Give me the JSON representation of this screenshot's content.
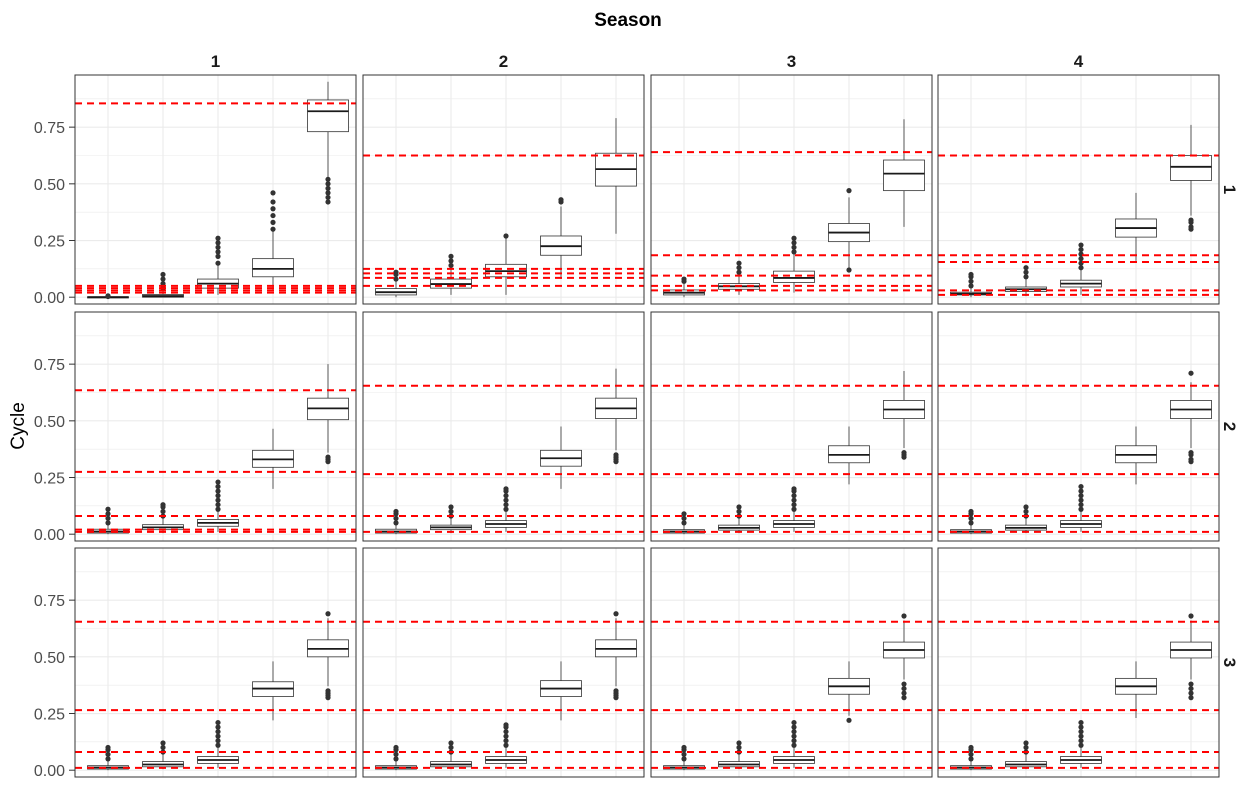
{
  "chart_data": {
    "type": "boxplot",
    "title": "Season",
    "ylabel": "Cycle",
    "xlabel": "",
    "ylim": [
      -0.03,
      0.98
    ],
    "yticks": [
      0.0,
      0.25,
      0.5,
      0.75
    ],
    "ytick_labels": [
      "0.00",
      "0.25",
      "0.50",
      "0.75"
    ],
    "col_strips": [
      "1",
      "2",
      "3",
      "4"
    ],
    "row_strips": [
      "1",
      "2",
      "3"
    ],
    "grid": true,
    "colors": {
      "reference_line": "#ff0000",
      "box_fill": "#ffffff",
      "box_line": "#333333",
      "outlier": "#333333",
      "grid": "#ebebeb",
      "panel_border": "#333333"
    },
    "panels": [
      {
        "row": "1",
        "col": "1",
        "ref_lines": [
          0.855,
          0.05,
          0.04,
          0.03,
          0.02
        ],
        "boxes": [
          {
            "q1": 0.0,
            "median": 0.0,
            "q3": 0.002,
            "lo": 0.0,
            "hi": 0.005,
            "out": [
              0.003,
              0.006
            ]
          },
          {
            "q1": 0.0,
            "median": 0.005,
            "q3": 0.012,
            "lo": 0.0,
            "hi": 0.03,
            "out": [
              0.04,
              0.06,
              0.08,
              0.1
            ]
          },
          {
            "q1": 0.04,
            "median": 0.06,
            "q3": 0.08,
            "lo": 0.01,
            "hi": 0.14,
            "out": [
              0.15,
              0.18,
              0.2,
              0.22,
              0.24,
              0.26
            ]
          },
          {
            "q1": 0.09,
            "median": 0.125,
            "q3": 0.17,
            "lo": 0.03,
            "hi": 0.29,
            "out": [
              0.3,
              0.33,
              0.36,
              0.39,
              0.42,
              0.46
            ]
          },
          {
            "q1": 0.73,
            "median": 0.82,
            "q3": 0.87,
            "lo": 0.53,
            "hi": 0.95,
            "out": [
              0.42,
              0.44,
              0.46,
              0.48,
              0.5,
              0.52
            ]
          }
        ]
      },
      {
        "row": "1",
        "col": "2",
        "ref_lines": [
          0.625,
          0.125,
          0.105,
          0.085,
          0.05
        ],
        "boxes": [
          {
            "q1": 0.01,
            "median": 0.022,
            "q3": 0.038,
            "lo": 0.0,
            "hi": 0.07,
            "out": [
              0.08,
              0.1,
              0.11
            ]
          },
          {
            "q1": 0.04,
            "median": 0.058,
            "q3": 0.08,
            "lo": 0.01,
            "hi": 0.13,
            "out": [
              0.14,
              0.16,
              0.18
            ]
          },
          {
            "q1": 0.09,
            "median": 0.115,
            "q3": 0.145,
            "lo": 0.01,
            "hi": 0.26,
            "out": [
              0.27
            ]
          },
          {
            "q1": 0.185,
            "median": 0.225,
            "q3": 0.27,
            "lo": 0.08,
            "hi": 0.4,
            "out": [
              0.42,
              0.43
            ]
          },
          {
            "q1": 0.49,
            "median": 0.565,
            "q3": 0.635,
            "lo": 0.28,
            "hi": 0.79,
            "out": []
          }
        ]
      },
      {
        "row": "1",
        "col": "3",
        "ref_lines": [
          0.64,
          0.185,
          0.095,
          0.05,
          0.03
        ],
        "boxes": [
          {
            "q1": 0.01,
            "median": 0.02,
            "q3": 0.032,
            "lo": 0.0,
            "hi": 0.06,
            "out": [
              0.07,
              0.08
            ]
          },
          {
            "q1": 0.035,
            "median": 0.048,
            "q3": 0.06,
            "lo": 0.01,
            "hi": 0.1,
            "out": [
              0.11,
              0.13,
              0.15
            ]
          },
          {
            "q1": 0.065,
            "median": 0.085,
            "q3": 0.115,
            "lo": 0.02,
            "hi": 0.19,
            "out": [
              0.2,
              0.22,
              0.24,
              0.26
            ]
          },
          {
            "q1": 0.245,
            "median": 0.285,
            "q3": 0.325,
            "lo": 0.13,
            "hi": 0.44,
            "out": [
              0.12,
              0.47
            ]
          },
          {
            "q1": 0.47,
            "median": 0.545,
            "q3": 0.605,
            "lo": 0.31,
            "hi": 0.785,
            "out": []
          }
        ]
      },
      {
        "row": "1",
        "col": "4",
        "ref_lines": [
          0.625,
          0.185,
          0.155,
          0.03,
          0.01
        ],
        "boxes": [
          {
            "q1": 0.01,
            "median": 0.015,
            "q3": 0.022,
            "lo": 0.0,
            "hi": 0.04,
            "out": [
              0.05,
              0.07,
              0.09,
              0.1
            ]
          },
          {
            "q1": 0.025,
            "median": 0.035,
            "q3": 0.045,
            "lo": 0.005,
            "hi": 0.08,
            "out": [
              0.09,
              0.11,
              0.13
            ]
          },
          {
            "q1": 0.045,
            "median": 0.06,
            "q3": 0.075,
            "lo": 0.01,
            "hi": 0.12,
            "out": [
              0.13,
              0.15,
              0.17,
              0.19,
              0.21,
              0.23
            ]
          },
          {
            "q1": 0.265,
            "median": 0.305,
            "q3": 0.345,
            "lo": 0.16,
            "hi": 0.46,
            "out": []
          },
          {
            "q1": 0.515,
            "median": 0.575,
            "q3": 0.625,
            "lo": 0.36,
            "hi": 0.76,
            "out": [
              0.3,
              0.31,
              0.33,
              0.34
            ]
          }
        ]
      },
      {
        "row": "2",
        "col": "1",
        "ref_lines": [
          0.635,
          0.275,
          0.08,
          0.02,
          0.01
        ],
        "boxes": [
          {
            "q1": 0.005,
            "median": 0.012,
            "q3": 0.022,
            "lo": 0.0,
            "hi": 0.04,
            "out": [
              0.05,
              0.07,
              0.09,
              0.11
            ]
          },
          {
            "q1": 0.02,
            "median": 0.03,
            "q3": 0.042,
            "lo": 0.005,
            "hi": 0.07,
            "out": [
              0.08,
              0.1,
              0.12,
              0.13
            ]
          },
          {
            "q1": 0.035,
            "median": 0.05,
            "q3": 0.065,
            "lo": 0.01,
            "hi": 0.1,
            "out": [
              0.11,
              0.13,
              0.15,
              0.17,
              0.19,
              0.21,
              0.23
            ]
          },
          {
            "q1": 0.295,
            "median": 0.33,
            "q3": 0.37,
            "lo": 0.2,
            "hi": 0.465,
            "out": []
          },
          {
            "q1": 0.505,
            "median": 0.555,
            "q3": 0.6,
            "lo": 0.36,
            "hi": 0.75,
            "out": [
              0.32,
              0.33,
              0.34
            ]
          }
        ]
      },
      {
        "row": "2",
        "col": "2",
        "ref_lines": [
          0.655,
          0.265,
          0.08,
          0.01
        ],
        "boxes": [
          {
            "q1": 0.005,
            "median": 0.012,
            "q3": 0.022,
            "lo": 0.0,
            "hi": 0.04,
            "out": [
              0.05,
              0.07,
              0.09,
              0.1
            ]
          },
          {
            "q1": 0.02,
            "median": 0.03,
            "q3": 0.04,
            "lo": 0.005,
            "hi": 0.07,
            "out": [
              0.08,
              0.1,
              0.12
            ]
          },
          {
            "q1": 0.03,
            "median": 0.045,
            "q3": 0.06,
            "lo": 0.01,
            "hi": 0.1,
            "out": [
              0.11,
              0.13,
              0.15,
              0.17,
              0.19,
              0.2
            ]
          },
          {
            "q1": 0.3,
            "median": 0.335,
            "q3": 0.37,
            "lo": 0.2,
            "hi": 0.475,
            "out": []
          },
          {
            "q1": 0.51,
            "median": 0.555,
            "q3": 0.6,
            "lo": 0.37,
            "hi": 0.73,
            "out": [
              0.32,
              0.33,
              0.34,
              0.35
            ]
          }
        ]
      },
      {
        "row": "2",
        "col": "3",
        "ref_lines": [
          0.655,
          0.265,
          0.08,
          0.01
        ],
        "boxes": [
          {
            "q1": 0.005,
            "median": 0.012,
            "q3": 0.02,
            "lo": 0.0,
            "hi": 0.04,
            "out": [
              0.05,
              0.07,
              0.09
            ]
          },
          {
            "q1": 0.018,
            "median": 0.028,
            "q3": 0.04,
            "lo": 0.005,
            "hi": 0.07,
            "out": [
              0.08,
              0.1,
              0.12
            ]
          },
          {
            "q1": 0.03,
            "median": 0.045,
            "q3": 0.06,
            "lo": 0.01,
            "hi": 0.1,
            "out": [
              0.11,
              0.13,
              0.15,
              0.17,
              0.19,
              0.2
            ]
          },
          {
            "q1": 0.315,
            "median": 0.35,
            "q3": 0.39,
            "lo": 0.22,
            "hi": 0.475,
            "out": []
          },
          {
            "q1": 0.51,
            "median": 0.55,
            "q3": 0.59,
            "lo": 0.38,
            "hi": 0.72,
            "out": [
              0.34,
              0.35,
              0.36
            ]
          }
        ]
      },
      {
        "row": "2",
        "col": "4",
        "ref_lines": [
          0.655,
          0.265,
          0.08,
          0.01
        ],
        "boxes": [
          {
            "q1": 0.005,
            "median": 0.012,
            "q3": 0.02,
            "lo": 0.0,
            "hi": 0.04,
            "out": [
              0.05,
              0.07,
              0.09,
              0.1
            ]
          },
          {
            "q1": 0.018,
            "median": 0.028,
            "q3": 0.04,
            "lo": 0.005,
            "hi": 0.07,
            "out": [
              0.08,
              0.1,
              0.12
            ]
          },
          {
            "q1": 0.03,
            "median": 0.045,
            "q3": 0.06,
            "lo": 0.01,
            "hi": 0.1,
            "out": [
              0.11,
              0.13,
              0.15,
              0.17,
              0.19,
              0.21
            ]
          },
          {
            "q1": 0.315,
            "median": 0.35,
            "q3": 0.39,
            "lo": 0.22,
            "hi": 0.475,
            "out": []
          },
          {
            "q1": 0.51,
            "median": 0.55,
            "q3": 0.59,
            "lo": 0.38,
            "hi": 0.67,
            "out": [
              0.32,
              0.33,
              0.35,
              0.36,
              0.71
            ]
          }
        ]
      },
      {
        "row": "3",
        "col": "1",
        "ref_lines": [
          0.655,
          0.265,
          0.08,
          0.01
        ],
        "boxes": [
          {
            "q1": 0.005,
            "median": 0.012,
            "q3": 0.02,
            "lo": 0.0,
            "hi": 0.04,
            "out": [
              0.05,
              0.07,
              0.09,
              0.1
            ]
          },
          {
            "q1": 0.015,
            "median": 0.025,
            "q3": 0.038,
            "lo": 0.005,
            "hi": 0.07,
            "out": [
              0.08,
              0.1,
              0.12
            ]
          },
          {
            "q1": 0.03,
            "median": 0.045,
            "q3": 0.06,
            "lo": 0.01,
            "hi": 0.1,
            "out": [
              0.11,
              0.13,
              0.15,
              0.17,
              0.19,
              0.21
            ]
          },
          {
            "q1": 0.325,
            "median": 0.36,
            "q3": 0.39,
            "lo": 0.22,
            "hi": 0.48,
            "out": []
          },
          {
            "q1": 0.5,
            "median": 0.535,
            "q3": 0.575,
            "lo": 0.37,
            "hi": 0.67,
            "out": [
              0.32,
              0.33,
              0.34,
              0.35,
              0.69
            ]
          }
        ]
      },
      {
        "row": "3",
        "col": "2",
        "ref_lines": [
          0.655,
          0.265,
          0.08,
          0.01
        ],
        "boxes": [
          {
            "q1": 0.005,
            "median": 0.012,
            "q3": 0.02,
            "lo": 0.0,
            "hi": 0.04,
            "out": [
              0.05,
              0.07,
              0.09,
              0.1
            ]
          },
          {
            "q1": 0.015,
            "median": 0.025,
            "q3": 0.038,
            "lo": 0.005,
            "hi": 0.07,
            "out": [
              0.08,
              0.1,
              0.12
            ]
          },
          {
            "q1": 0.03,
            "median": 0.045,
            "q3": 0.06,
            "lo": 0.01,
            "hi": 0.1,
            "out": [
              0.11,
              0.13,
              0.15,
              0.17,
              0.19,
              0.2
            ]
          },
          {
            "q1": 0.325,
            "median": 0.36,
            "q3": 0.395,
            "lo": 0.22,
            "hi": 0.48,
            "out": []
          },
          {
            "q1": 0.5,
            "median": 0.535,
            "q3": 0.575,
            "lo": 0.37,
            "hi": 0.67,
            "out": [
              0.32,
              0.33,
              0.34,
              0.35,
              0.69
            ]
          }
        ]
      },
      {
        "row": "3",
        "col": "3",
        "ref_lines": [
          0.655,
          0.265,
          0.08,
          0.01
        ],
        "boxes": [
          {
            "q1": 0.005,
            "median": 0.012,
            "q3": 0.02,
            "lo": 0.0,
            "hi": 0.04,
            "out": [
              0.05,
              0.07,
              0.09,
              0.1
            ]
          },
          {
            "q1": 0.015,
            "median": 0.025,
            "q3": 0.038,
            "lo": 0.005,
            "hi": 0.07,
            "out": [
              0.08,
              0.1,
              0.12
            ]
          },
          {
            "q1": 0.03,
            "median": 0.045,
            "q3": 0.06,
            "lo": 0.01,
            "hi": 0.1,
            "out": [
              0.11,
              0.13,
              0.15,
              0.17,
              0.19,
              0.21
            ]
          },
          {
            "q1": 0.335,
            "median": 0.37,
            "q3": 0.405,
            "lo": 0.24,
            "hi": 0.48,
            "out": [
              0.22
            ]
          },
          {
            "q1": 0.495,
            "median": 0.53,
            "q3": 0.565,
            "lo": 0.4,
            "hi": 0.66,
            "out": [
              0.32,
              0.34,
              0.36,
              0.38,
              0.68
            ]
          }
        ]
      },
      {
        "row": "3",
        "col": "4",
        "ref_lines": [
          0.655,
          0.265,
          0.08,
          0.01
        ],
        "boxes": [
          {
            "q1": 0.005,
            "median": 0.012,
            "q3": 0.02,
            "lo": 0.0,
            "hi": 0.04,
            "out": [
              0.05,
              0.07,
              0.09,
              0.1
            ]
          },
          {
            "q1": 0.015,
            "median": 0.025,
            "q3": 0.038,
            "lo": 0.005,
            "hi": 0.07,
            "out": [
              0.08,
              0.1,
              0.12
            ]
          },
          {
            "q1": 0.03,
            "median": 0.045,
            "q3": 0.06,
            "lo": 0.01,
            "hi": 0.1,
            "out": [
              0.11,
              0.13,
              0.15,
              0.17,
              0.19,
              0.21
            ]
          },
          {
            "q1": 0.335,
            "median": 0.37,
            "q3": 0.405,
            "lo": 0.23,
            "hi": 0.48,
            "out": []
          },
          {
            "q1": 0.495,
            "median": 0.53,
            "q3": 0.565,
            "lo": 0.4,
            "hi": 0.66,
            "out": [
              0.32,
              0.34,
              0.36,
              0.38,
              0.68
            ]
          }
        ]
      }
    ]
  }
}
